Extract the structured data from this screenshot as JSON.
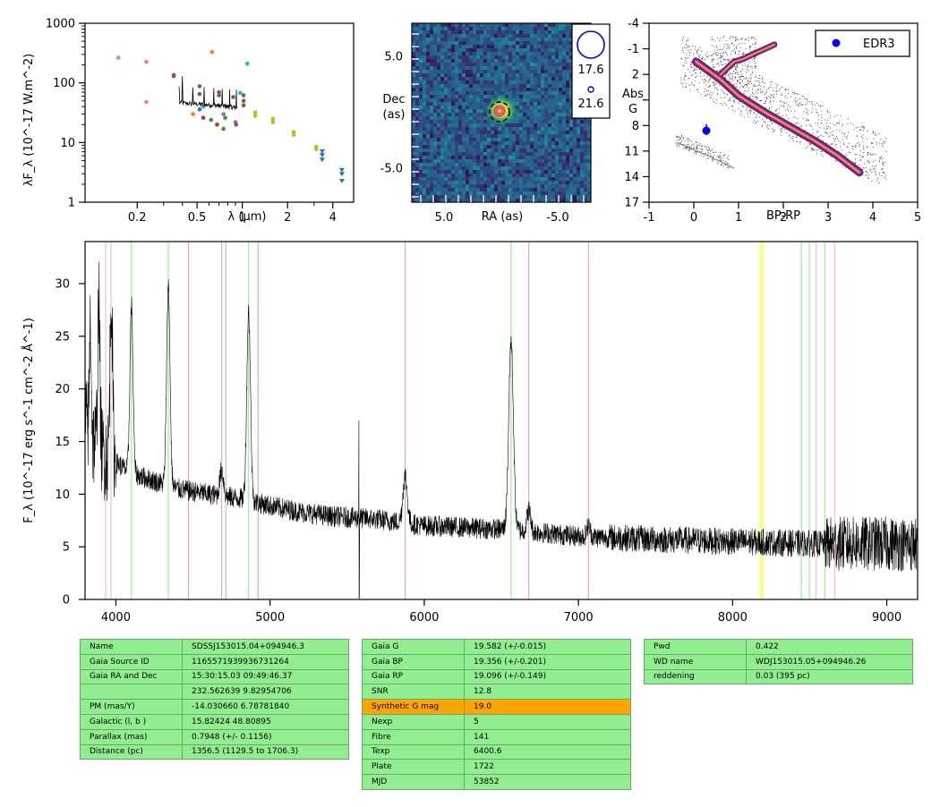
{
  "sed": {
    "ylabel": "λF_λ (10^-17 W.m^-2)",
    "xlabel": "λ (μm)",
    "xticks": [
      "0.2",
      "0.5",
      "1",
      "2",
      "4"
    ],
    "yticks": [
      "1",
      "10",
      "100",
      "1000"
    ],
    "points": [
      {
        "x": 0.15,
        "y": 265,
        "c": "#e377c2"
      },
      {
        "x": 0.23,
        "y": 225,
        "c": "#e377c2"
      },
      {
        "x": 0.23,
        "y": 48,
        "c": "#e377c2"
      },
      {
        "x": 0.35,
        "y": 135,
        "c": "#8c564b"
      },
      {
        "x": 0.35,
        "y": 130,
        "c": "#8c564b"
      },
      {
        "x": 0.47,
        "y": 30,
        "c": "#ff7f0e"
      },
      {
        "x": 0.52,
        "y": 36,
        "c": "#1f77b4"
      },
      {
        "x": 0.55,
        "y": 26,
        "c": "#d62728"
      },
      {
        "x": 0.62,
        "y": 24,
        "c": "#2ca02c"
      },
      {
        "x": 0.68,
        "y": 20,
        "c": "#d62728"
      },
      {
        "x": 0.75,
        "y": 17,
        "c": "#2ca02c"
      },
      {
        "x": 0.63,
        "y": 330,
        "c": "#ff7f0e"
      },
      {
        "x": 0.52,
        "y": 88,
        "c": "#8c564b"
      },
      {
        "x": 0.52,
        "y": 65,
        "c": "#8c564b"
      },
      {
        "x": 0.55,
        "y": 40,
        "c": "#17becf"
      },
      {
        "x": 0.7,
        "y": 70,
        "c": "#8c564b"
      },
      {
        "x": 0.7,
        "y": 62,
        "c": "#8c564b"
      },
      {
        "x": 0.75,
        "y": 30,
        "c": "#9467bd"
      },
      {
        "x": 0.77,
        "y": 26,
        "c": "#2ca02c"
      },
      {
        "x": 0.87,
        "y": 58,
        "c": "#8c564b"
      },
      {
        "x": 0.9,
        "y": 22,
        "c": "#7f7f7f"
      },
      {
        "x": 0.91,
        "y": 20,
        "c": "#8c564b"
      },
      {
        "x": 0.97,
        "y": 68,
        "c": "#17becf"
      },
      {
        "x": 1.02,
        "y": 62,
        "c": "#8c564b"
      },
      {
        "x": 1.02,
        "y": 50,
        "c": "#8c564b"
      },
      {
        "x": 1.02,
        "y": 42,
        "c": "#8c564b"
      },
      {
        "x": 1.08,
        "y": 210,
        "c": "#17becf"
      },
      {
        "x": 1.22,
        "y": 32,
        "c": "#bcbd22"
      },
      {
        "x": 1.22,
        "y": 28,
        "c": "#bcbd22"
      },
      {
        "x": 1.6,
        "y": 25,
        "c": "#bcbd22"
      },
      {
        "x": 1.6,
        "y": 22,
        "c": "#bcbd22"
      },
      {
        "x": 2.2,
        "y": 15,
        "c": "#bcbd22"
      },
      {
        "x": 2.2,
        "y": 13.5,
        "c": "#bcbd22"
      },
      {
        "x": 3.1,
        "y": 8.5,
        "c": "#bcbd22"
      },
      {
        "x": 3.1,
        "y": 7.8,
        "c": "#bcbd22"
      }
    ],
    "upper_limits": [
      {
        "x": 3.4,
        "y": 7.2
      },
      {
        "x": 3.4,
        "y": 6.2
      },
      {
        "x": 3.4,
        "y": 5.2
      },
      {
        "x": 4.6,
        "y": 3.5
      },
      {
        "x": 4.6,
        "y": 3.0
      },
      {
        "x": 4.6,
        "y": 2.3
      }
    ]
  },
  "cutout": {
    "xlabel": "RA (as)",
    "ylabel": "Dec (as)",
    "ylabel_lines": [
      "Dec",
      "(as)"
    ],
    "xticks": [
      "5.0",
      "-5.0"
    ],
    "yticks": [
      "5.0",
      "-5.0"
    ],
    "legend": [
      "17.6",
      "21.6"
    ]
  },
  "hrd": {
    "xlabel": "BP-RP",
    "ylabel": "Abs G",
    "ylabel_lines": [
      "Abs",
      "G"
    ],
    "xticks": [
      "-1",
      "0",
      "1",
      "2",
      "3",
      "4",
      "5"
    ],
    "yticks": [
      "-4",
      "-1",
      "2",
      "5",
      "8",
      "11",
      "14",
      "17"
    ],
    "legend": "EDR3",
    "target": {
      "bp_rp": 0.28,
      "abs_g": 8.6
    }
  },
  "chart_data": {
    "type": "line",
    "title": "",
    "xlabel": "",
    "ylabel": "F_λ (10^-17 erg s^-1 cm^-2 Å^-1)",
    "xlim": [
      3800,
      9200
    ],
    "ylim": [
      0,
      34
    ],
    "xticks": [
      "4000",
      "5000",
      "6000",
      "7000",
      "8000",
      "9000"
    ],
    "yticks": [
      "0",
      "5",
      "10",
      "15",
      "20",
      "25",
      "30"
    ],
    "continuum": [
      {
        "x": 3800,
        "y": 17
      },
      {
        "x": 3850,
        "y": 15
      },
      {
        "x": 3950,
        "y": 13.5
      },
      {
        "x": 4000,
        "y": 13
      },
      {
        "x": 4100,
        "y": 12
      },
      {
        "x": 4200,
        "y": 11.5
      },
      {
        "x": 4400,
        "y": 10.5
      },
      {
        "x": 4600,
        "y": 10
      },
      {
        "x": 4800,
        "y": 9.6
      },
      {
        "x": 5000,
        "y": 8.9
      },
      {
        "x": 5200,
        "y": 8.3
      },
      {
        "x": 5400,
        "y": 7.9
      },
      {
        "x": 5700,
        "y": 7.6
      },
      {
        "x": 6000,
        "y": 7.0
      },
      {
        "x": 6300,
        "y": 6.8
      },
      {
        "x": 6600,
        "y": 6.6
      },
      {
        "x": 7000,
        "y": 6.0
      },
      {
        "x": 7500,
        "y": 5.7
      },
      {
        "x": 8000,
        "y": 5.5
      },
      {
        "x": 8500,
        "y": 5.3
      },
      {
        "x": 9000,
        "y": 5.3
      },
      {
        "x": 9200,
        "y": 5.2
      }
    ],
    "emission_lines": [
      {
        "x": 3835,
        "h": 11,
        "w": 6
      },
      {
        "x": 3889,
        "h": 14,
        "w": 7
      },
      {
        "x": 3970,
        "h": 16,
        "w": 8
      },
      {
        "x": 4101,
        "h": 16,
        "w": 10
      },
      {
        "x": 4340,
        "h": 19,
        "w": 11
      },
      {
        "x": 4686,
        "h": 2.5,
        "w": 12
      },
      {
        "x": 4861,
        "h": 18,
        "w": 12
      },
      {
        "x": 5876,
        "h": 4.5,
        "w": 14
      },
      {
        "x": 6563,
        "h": 18,
        "w": 15
      },
      {
        "x": 6678,
        "h": 2,
        "w": 12
      },
      {
        "x": 7065,
        "h": 1,
        "w": 12
      }
    ],
    "spikes": [
      {
        "x": 5577,
        "y": 17
      },
      {
        "x": 5577,
        "y": 0
      }
    ],
    "vlines": [
      {
        "x": 3934,
        "c": "#ffb6c1"
      },
      {
        "x": 3968,
        "c": "#ffb6c1"
      },
      {
        "x": 4101,
        "c": "#90ee90"
      },
      {
        "x": 4340,
        "c": "#90ee90"
      },
      {
        "x": 4471,
        "c": "#dda0dd"
      },
      {
        "x": 4686,
        "c": "#dda0dd"
      },
      {
        "x": 4713,
        "c": "#dda0dd"
      },
      {
        "x": 4861,
        "c": "#90ee90"
      },
      {
        "x": 4922,
        "c": "#dda0dd"
      },
      {
        "x": 5876,
        "c": "#dda0dd"
      },
      {
        "x": 6563,
        "c": "#90ee90"
      },
      {
        "x": 6678,
        "c": "#dda0dd"
      },
      {
        "x": 7065,
        "c": "#dda0dd"
      },
      {
        "x": 8183,
        "c": "#ffff00"
      },
      {
        "x": 8195,
        "c": "#ffff00"
      },
      {
        "x": 8446,
        "c": "#90ee90"
      },
      {
        "x": 8498,
        "c": "#90ee90"
      },
      {
        "x": 8542,
        "c": "#ffb6c1"
      },
      {
        "x": 8598,
        "c": "#90ee90"
      },
      {
        "x": 8662,
        "c": "#ffb6c1"
      }
    ]
  },
  "table1": [
    [
      "Name",
      "SDSSJ153015.04+094946.3"
    ],
    [
      "Gaia Source ID",
      "1165571939936731264"
    ],
    [
      "Gaia RA and Dec",
      "15:30:15.03    09:49:46.37"
    ],
    [
      "",
      "232.562639    9.82954706"
    ],
    [
      "PM (mas/Y)",
      "-14.030660    6.78781840"
    ],
    [
      "Galactic (l, b )",
      "15.82424    48.80895"
    ],
    [
      "Parallax (mas)",
      "0.7948 (+/- 0.1156)"
    ],
    [
      "Distance (pc)",
      "1356.5 (1129.5 to 1706.3)"
    ]
  ],
  "table2": [
    [
      "Gaia G",
      "19.582 (+/-0.015)"
    ],
    [
      "Gaia BP",
      "19.356 (+/-0.201)"
    ],
    [
      "Gaia RP",
      "19.096 (+/-0.149)"
    ],
    [
      "SNR",
      "12.8"
    ],
    [
      "Synthetic G mag",
      "19.0"
    ],
    [
      "Nexp",
      "5"
    ],
    [
      "Fibre",
      "141"
    ],
    [
      "Texp",
      "6400.6"
    ],
    [
      "Plate",
      "1722"
    ],
    [
      "MJD",
      "53852"
    ]
  ],
  "table3": [
    [
      "Pwd",
      "0.422"
    ],
    [
      "WD name",
      "WDJ153015.05+094946.26"
    ],
    [
      "reddening",
      "0.03 (395 pc)"
    ]
  ],
  "colors": {
    "highlight": "#ffa500",
    "cell": "#90ee90",
    "legend_marker": "#0000ff"
  }
}
